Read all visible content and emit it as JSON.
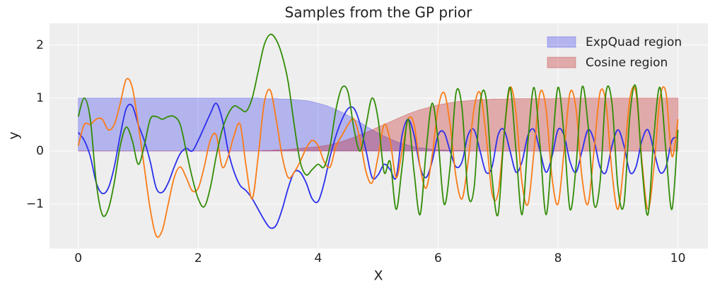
{
  "chart_data": {
    "type": "line",
    "title": "Samples from the GP prior",
    "x_label": "X",
    "y_label": "y",
    "xlim": [
      -0.48,
      10.5
    ],
    "ylim": [
      -1.84,
      2.41
    ],
    "xticks": [
      0,
      2,
      4,
      6,
      8,
      10
    ],
    "yticks": [
      {
        "value": -1,
        "label": "−1"
      },
      0,
      1,
      2
    ],
    "grid": true,
    "legend": "upper right",
    "x": [
      0,
      0.1,
      0.2,
      0.3,
      0.4,
      0.5,
      0.6,
      0.7,
      0.8,
      0.9,
      1,
      1.1,
      1.2,
      1.3,
      1.4,
      1.5,
      1.6,
      1.7,
      1.8,
      1.9,
      2,
      2.1,
      2.2,
      2.3,
      2.4,
      2.5,
      2.6,
      2.7,
      2.8,
      2.9,
      3,
      3.1,
      3.2,
      3.3,
      3.4,
      3.5,
      3.6,
      3.7,
      3.8,
      3.9,
      4,
      4.1,
      4.2,
      4.3,
      4.4,
      4.5,
      4.6,
      4.7,
      4.8,
      4.9,
      5,
      5.1,
      5.2,
      5.3,
      5.4,
      5.5,
      5.6,
      5.7,
      5.8,
      5.9,
      6,
      6.1,
      6.2,
      6.3,
      6.4,
      6.5,
      6.6,
      6.7,
      6.8,
      6.9,
      7,
      7.1,
      7.2,
      7.3,
      7.4,
      7.5,
      7.6,
      7.7,
      7.8,
      7.9,
      8,
      8.1,
      8.2,
      8.3,
      8.4,
      8.5,
      8.6,
      8.7,
      8.8,
      8.9,
      9,
      9.1,
      9.2,
      9.3,
      9.4,
      9.5,
      9.6,
      9.7,
      9.8,
      9.9,
      10
    ],
    "regions": [
      {
        "name": "ExpQuad region",
        "color": "#2a2eec",
        "values": [
          1,
          1,
          1,
          1,
          1,
          1,
          1,
          1,
          1,
          1,
          1,
          1,
          1,
          1,
          1,
          1,
          1,
          1,
          1,
          1,
          1,
          1,
          1,
          1,
          1,
          1,
          1,
          1,
          1,
          1,
          1,
          0.99,
          0.99,
          0.99,
          0.98,
          0.98,
          0.97,
          0.96,
          0.95,
          0.93,
          0.9,
          0.87,
          0.83,
          0.78,
          0.73,
          0.67,
          0.6,
          0.54,
          0.47,
          0.4,
          0.34,
          0.28,
          0.23,
          0.18,
          0.14,
          0.11,
          0.08,
          0.06,
          0.05,
          0.03,
          0.02,
          0.02,
          0.01,
          0.01,
          0.01,
          0,
          0,
          0,
          0,
          0,
          0,
          0,
          0,
          0,
          0,
          0,
          0,
          0,
          0,
          0,
          0,
          0,
          0,
          0,
          0,
          0,
          0,
          0,
          0,
          0,
          0,
          0,
          0,
          0,
          0,
          0,
          0,
          0,
          0,
          0,
          0
        ]
      },
      {
        "name": "Cosine region",
        "color": "#c10c0c",
        "values": [
          0,
          0,
          0,
          0,
          0,
          0,
          0,
          0,
          0,
          0,
          0,
          0,
          0,
          0,
          0,
          0,
          0,
          0,
          0,
          0,
          0,
          0,
          0,
          0,
          0,
          0,
          0,
          0,
          0,
          0,
          0,
          0.01,
          0.01,
          0.02,
          0.02,
          0.03,
          0.04,
          0.05,
          0.06,
          0.07,
          0.08,
          0.1,
          0.12,
          0.15,
          0.18,
          0.22,
          0.26,
          0.31,
          0.35,
          0.4,
          0.45,
          0.5,
          0.55,
          0.6,
          0.65,
          0.7,
          0.74,
          0.78,
          0.81,
          0.84,
          0.87,
          0.89,
          0.91,
          0.93,
          0.94,
          0.95,
          0.96,
          0.97,
          0.97,
          0.98,
          0.98,
          0.98,
          0.99,
          0.99,
          0.99,
          0.99,
          0.99,
          0.99,
          0.99,
          0.99,
          1,
          1,
          1,
          1,
          1,
          1,
          1,
          1,
          1,
          1,
          1,
          1,
          1,
          1,
          1,
          1,
          1,
          1,
          1,
          1,
          1
        ]
      }
    ],
    "series": [
      {
        "color": "#2a2eec",
        "values": [
          0.35,
          0.2,
          -0.1,
          -0.6,
          -0.8,
          -0.7,
          -0.3,
          0.3,
          0.8,
          0.85,
          0.5,
          0.2,
          -0.2,
          -0.7,
          -0.78,
          -0.6,
          -0.3,
          -0.05,
          0.05,
          0,
          0.2,
          0.45,
          0.7,
          0.9,
          0.6,
          0,
          -0.4,
          -0.65,
          -0.75,
          -0.9,
          -1.1,
          -1.3,
          -1.45,
          -1.4,
          -1.1,
          -0.7,
          -0.4,
          -0.4,
          -0.6,
          -0.9,
          -0.95,
          -0.6,
          -0.1,
          0.3,
          0.6,
          0.8,
          0.8,
          0.5,
          0,
          -0.5,
          -0.45,
          -0.25,
          -0.35,
          -0.5,
          0.3,
          0.6,
          0.3,
          -0.3,
          -0.5,
          -0.2,
          0.3,
          0.35,
          0,
          -0.3,
          -0.2,
          0.3,
          0.4,
          0,
          -0.4,
          -0.3,
          0.3,
          0.4,
          0,
          -0.4,
          -0.2,
          0.3,
          0.4,
          0,
          -0.4,
          -0.1,
          0.4,
          0.3,
          -0.2,
          -0.4,
          0,
          0.4,
          0.2,
          -0.3,
          -0.4,
          0.1,
          0.4,
          0.1,
          -0.4,
          -0.3,
          0.2,
          0.4,
          0,
          -0.4,
          -0.3,
          0.2,
          0.25
        ]
      },
      {
        "color": "#fa7c17",
        "values": [
          0.1,
          0.5,
          0.5,
          0.6,
          0.6,
          0.4,
          0.5,
          0.9,
          1.35,
          1.2,
          0.5,
          -0.3,
          -1.1,
          -1.6,
          -1.5,
          -1,
          -0.5,
          -0.3,
          -0.5,
          -0.75,
          -0.7,
          -0.3,
          0.2,
          0.3,
          -0.3,
          -0.1,
          0.3,
          0.5,
          -0.3,
          -0.9,
          -0.1,
          0.9,
          1.15,
          0.6,
          -0.1,
          -0.5,
          -0.4,
          -0.2,
          0.05,
          0.2,
          0.1,
          -0.2,
          -0.3,
          0.1,
          0.3,
          0.5,
          0.6,
          0.2,
          -0.4,
          -0.6,
          -0.1,
          0.5,
          0.2,
          -0.5,
          0,
          0.6,
          0.5,
          -0.3,
          -0.7,
          -0.1,
          0.8,
          1.1,
          0.5,
          -0.5,
          -0.9,
          -0.2,
          0.8,
          1.1,
          0.3,
          -0.8,
          -0.8,
          0.3,
          1.2,
          0.7,
          -0.6,
          -1,
          0,
          1.1,
          0.8,
          -0.5,
          -1,
          0,
          1.1,
          0.8,
          -0.5,
          -1,
          0,
          1.1,
          0.9,
          -0.4,
          -1.1,
          -0.2,
          1,
          1.1,
          -0.2,
          -1.1,
          -0.3,
          1,
          1.1,
          -0.1,
          0.6
        ]
      },
      {
        "color": "#328c06",
        "values": [
          0.65,
          1,
          0.6,
          -0.6,
          -1.2,
          -1.1,
          -0.6,
          0.1,
          0.45,
          0.2,
          -0.25,
          0.1,
          0.6,
          0.65,
          0.6,
          0.65,
          0.65,
          0.5,
          0,
          -0.5,
          -0.9,
          -1.05,
          -0.7,
          -0.1,
          0.4,
          0.7,
          0.85,
          0.8,
          0.75,
          1,
          1.5,
          2,
          2.2,
          2.1,
          1.8,
          1.3,
          0.5,
          -0.2,
          -0.45,
          -0.35,
          -0.25,
          -0.3,
          0.1,
          0.8,
          1.2,
          1.1,
          0.4,
          0,
          0.5,
          1,
          0.6,
          -0.4,
          -0.2,
          -1.1,
          -0.3,
          0.6,
          -0.4,
          -1.2,
          0,
          0.9,
          0.2,
          -1,
          -0.3,
          1.1,
          0.8,
          -0.8,
          -0.7,
          0.9,
          1,
          -0.5,
          -1.2,
          0.3,
          1.2,
          0,
          -1.2,
          0.2,
          1.2,
          0.1,
          -1.2,
          0,
          1.2,
          0.3,
          -1.1,
          -0.3,
          1.2,
          0.5,
          -1,
          -0.6,
          1.1,
          0.9,
          -0.7,
          -1,
          0.7,
          1.2,
          -0.3,
          -1.2,
          0.3,
          1.2,
          0,
          -1.1,
          0.4
        ]
      }
    ]
  }
}
